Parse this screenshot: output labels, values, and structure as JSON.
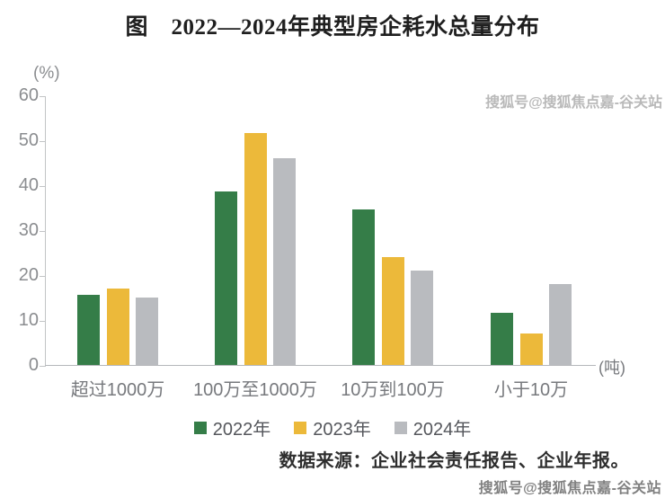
{
  "title": "图　2022—2024年典型房企耗水总量分布",
  "chart_data": {
    "type": "bar",
    "categories": [
      "超过1000万",
      "100万至1000万",
      "10万到100万",
      "小于10万"
    ],
    "series": [
      {
        "name": "2022年",
        "color": "#357d48",
        "values": [
          15.5,
          38.5,
          34.5,
          11.5
        ]
      },
      {
        "name": "2023年",
        "color": "#ecb93a",
        "values": [
          17,
          51.5,
          24,
          7
        ]
      },
      {
        "name": "2024年",
        "color": "#b9bbbf",
        "values": [
          15,
          46,
          21,
          18
        ]
      }
    ],
    "ylabel": "(%)",
    "x_unit_label": "(吨)",
    "ylim": [
      0,
      60
    ],
    "ytick_step": 10,
    "grid": false,
    "legend_position": "bottom"
  },
  "source_note": "数据来源：企业社会责任报告、企业年报。",
  "watermark": {
    "top_right": "搜狐号@搜狐焦点嘉-谷关站",
    "bottom_right": "搜狐号@搜狐焦点嘉-谷关站"
  }
}
